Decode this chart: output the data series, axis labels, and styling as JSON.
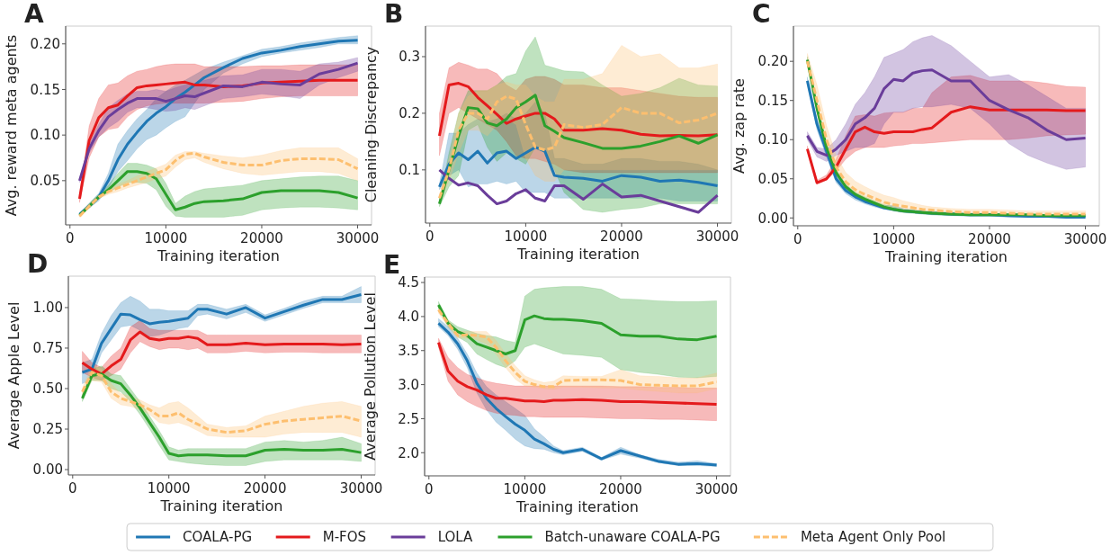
{
  "chart_data": [
    {
      "type": "line",
      "title": "A",
      "xlabel": "Training iteration",
      "ylabel": "Avg. reward meta agents",
      "legend": "bottom",
      "xlim": [
        -450,
        31450
      ],
      "xticks": [
        0,
        10000,
        20000,
        30000
      ],
      "ylim": [
        0.0015,
        0.2195
      ],
      "yticks": [
        0.05,
        {
          "value": 0.1,
          "label": "0.10"
        },
        0.15,
        {
          "value": 0.2,
          "label": "0.20"
        }
      ],
      "x": [
        1000,
        2000,
        3000,
        4000,
        5000,
        6000,
        7000,
        8000,
        9000,
        10000,
        11000,
        12000,
        13000,
        14000,
        16000,
        18000,
        20000,
        22000,
        24000,
        26000,
        28000,
        30000
      ],
      "series": [
        {
          "name": "COALA-PG",
          "color": "#1f77b4",
          "values": [
            0.013,
            0.022,
            0.032,
            0.05,
            0.073,
            0.09,
            0.103,
            0.115,
            0.124,
            0.131,
            0.14,
            0.147,
            0.155,
            0.163,
            0.174,
            0.184,
            0.19,
            0.193,
            0.197,
            0.2,
            0.203,
            0.204
          ],
          "lower": [
            0.012,
            0.02,
            0.028,
            0.042,
            0.06,
            0.072,
            0.085,
            0.095,
            0.1,
            0.108,
            0.115,
            0.12,
            0.135,
            0.15,
            0.168,
            0.178,
            0.186,
            0.19,
            0.193,
            0.196,
            0.2,
            0.2
          ],
          "upper": [
            0.015,
            0.025,
            0.036,
            0.058,
            0.09,
            0.105,
            0.118,
            0.128,
            0.14,
            0.148,
            0.155,
            0.16,
            0.166,
            0.172,
            0.18,
            0.187,
            0.194,
            0.197,
            0.201,
            0.204,
            0.207,
            0.209
          ]
        },
        {
          "name": "M-FOS",
          "color": "#e41a1c",
          "values": [
            0.03,
            0.094,
            0.119,
            0.13,
            0.133,
            0.143,
            0.152,
            0.154,
            0.155,
            0.156,
            0.157,
            0.158,
            0.155,
            0.155,
            0.153,
            0.154,
            0.157,
            0.158,
            0.159,
            0.16,
            0.16,
            0.16
          ],
          "lower": [
            0.026,
            0.075,
            0.098,
            0.106,
            0.108,
            0.12,
            0.128,
            0.132,
            0.134,
            0.135,
            0.135,
            0.135,
            0.135,
            0.135,
            0.136,
            0.137,
            0.14,
            0.142,
            0.143,
            0.143,
            0.143,
            0.143
          ],
          "upper": [
            0.034,
            0.11,
            0.14,
            0.155,
            0.157,
            0.165,
            0.17,
            0.172,
            0.175,
            0.177,
            0.178,
            0.178,
            0.178,
            0.175,
            0.175,
            0.175,
            0.176,
            0.176,
            0.177,
            0.177,
            0.177,
            0.177
          ]
        },
        {
          "name": "LOLA",
          "color": "#6a3d9a",
          "values": [
            0.05,
            0.085,
            0.105,
            0.12,
            0.128,
            0.135,
            0.14,
            0.14,
            0.14,
            0.137,
            0.14,
            0.143,
            0.142,
            0.146,
            0.154,
            0.153,
            0.158,
            0.156,
            0.155,
            0.167,
            0.172,
            0.179
          ],
          "lower": [
            0.048,
            0.08,
            0.098,
            0.108,
            0.115,
            0.125,
            0.13,
            0.13,
            0.128,
            0.126,
            0.127,
            0.13,
            0.128,
            0.132,
            0.14,
            0.142,
            0.145,
            0.143,
            0.14,
            0.155,
            0.163,
            0.17
          ],
          "upper": [
            0.052,
            0.09,
            0.112,
            0.13,
            0.138,
            0.145,
            0.148,
            0.148,
            0.15,
            0.148,
            0.152,
            0.155,
            0.155,
            0.16,
            0.165,
            0.166,
            0.172,
            0.172,
            0.17,
            0.178,
            0.18,
            0.185
          ]
        },
        {
          "name": "Batch-unaware COALA-PG",
          "color": "#2ca02c",
          "values": [
            0.012,
            0.022,
            0.032,
            0.04,
            0.05,
            0.06,
            0.06,
            0.058,
            0.052,
            0.035,
            0.018,
            0.021,
            0.025,
            0.027,
            0.028,
            0.03,
            0.037,
            0.039,
            0.039,
            0.039,
            0.037,
            0.031
          ],
          "lower": [
            0.011,
            0.02,
            0.03,
            0.037,
            0.043,
            0.048,
            0.048,
            0.047,
            0.04,
            0.022,
            0.011,
            0.01,
            0.01,
            0.01,
            0.01,
            0.012,
            0.018,
            0.02,
            0.021,
            0.021,
            0.02,
            0.018
          ],
          "upper": [
            0.013,
            0.025,
            0.035,
            0.045,
            0.058,
            0.069,
            0.069,
            0.067,
            0.063,
            0.047,
            0.025,
            0.033,
            0.038,
            0.041,
            0.043,
            0.045,
            0.05,
            0.052,
            0.054,
            0.055,
            0.055,
            0.05
          ]
        },
        {
          "name": "Meta Agent Only Pool",
          "color": "#fdbf6f",
          "line_style": "dashed",
          "values": [
            0.011,
            0.022,
            0.032,
            0.038,
            0.042,
            0.046,
            0.05,
            0.054,
            0.058,
            0.062,
            0.072,
            0.079,
            0.08,
            0.076,
            0.07,
            0.067,
            0.067,
            0.072,
            0.074,
            0.074,
            0.073,
            0.063
          ],
          "lower": [
            0.01,
            0.02,
            0.03,
            0.035,
            0.038,
            0.042,
            0.045,
            0.048,
            0.052,
            0.055,
            0.065,
            0.073,
            0.075,
            0.07,
            0.063,
            0.058,
            0.056,
            0.058,
            0.06,
            0.06,
            0.058,
            0.05
          ],
          "upper": [
            0.012,
            0.024,
            0.034,
            0.041,
            0.046,
            0.05,
            0.055,
            0.06,
            0.064,
            0.068,
            0.078,
            0.082,
            0.082,
            0.08,
            0.077,
            0.075,
            0.078,
            0.083,
            0.086,
            0.086,
            0.086,
            0.074
          ]
        }
      ]
    },
    {
      "type": "line",
      "title": "B",
      "xlabel": "Training iteration",
      "ylabel": "Cleaning Discrepancy",
      "legend": "bottom",
      "xlim": [
        -450,
        31450
      ],
      "xticks": [
        0,
        10000,
        20000,
        30000
      ],
      "ylim": [
        0.006,
        0.354
      ],
      "yticks": [
        0.1,
        0.2,
        0.3
      ],
      "x": [
        1000,
        2000,
        3000,
        4000,
        5000,
        6000,
        7000,
        8000,
        9000,
        10000,
        11000,
        12000,
        13000,
        14000,
        16000,
        18000,
        20000,
        22000,
        24000,
        26000,
        28000,
        30000
      ],
      "series": [
        {
          "name": "COALA-PG",
          "color": "#1f77b4",
          "values": [
            0.07,
            0.11,
            0.13,
            0.118,
            0.133,
            0.112,
            0.13,
            0.133,
            0.12,
            0.13,
            0.14,
            0.133,
            0.09,
            0.087,
            0.085,
            0.08,
            0.09,
            0.087,
            0.08,
            0.082,
            0.078,
            0.072
          ],
          "lower": [
            0.065,
            0.09,
            0.1,
            0.07,
            0.075,
            0.075,
            0.08,
            0.075,
            0.08,
            0.06,
            0.06,
            0.06,
            0.05,
            0.05,
            0.05,
            0.05,
            0.05,
            0.05,
            0.05,
            0.045,
            0.045,
            0.045
          ],
          "upper": [
            0.075,
            0.165,
            0.165,
            0.18,
            0.19,
            0.185,
            0.19,
            0.2,
            0.19,
            0.2,
            0.22,
            0.2,
            0.12,
            0.12,
            0.11,
            0.11,
            0.12,
            0.12,
            0.115,
            0.115,
            0.11,
            0.1
          ]
        },
        {
          "name": "M-FOS",
          "color": "#e41a1c",
          "values": [
            0.16,
            0.25,
            0.253,
            0.247,
            0.228,
            0.213,
            0.198,
            0.182,
            0.19,
            0.195,
            0.2,
            0.2,
            0.19,
            0.17,
            0.17,
            0.173,
            0.17,
            0.163,
            0.16,
            0.161,
            0.16,
            0.162
          ],
          "lower": [
            0.125,
            0.2,
            0.21,
            0.2,
            0.19,
            0.18,
            0.17,
            0.15,
            0.125,
            0.12,
            0.12,
            0.115,
            0.11,
            0.1,
            0.095,
            0.095,
            0.095,
            0.095,
            0.095,
            0.095,
            0.095,
            0.095
          ],
          "upper": [
            0.2,
            0.28,
            0.29,
            0.285,
            0.278,
            0.278,
            0.27,
            0.25,
            0.24,
            0.26,
            0.265,
            0.265,
            0.26,
            0.25,
            0.25,
            0.245,
            0.245,
            0.24,
            0.235,
            0.23,
            0.228,
            0.228
          ]
        },
        {
          "name": "LOLA",
          "color": "#6a3d9a",
          "values": [
            0.1,
            0.085,
            0.073,
            0.077,
            0.072,
            0.055,
            0.04,
            0.045,
            0.058,
            0.065,
            0.05,
            0.045,
            0.072,
            0.072,
            0.048,
            0.075,
            0.052,
            0.055,
            0.045,
            0.035,
            0.025,
            0.055
          ]
        },
        {
          "name": "Batch-unaware COALA-PG",
          "color": "#2ca02c",
          "values": [
            0.04,
            0.1,
            0.16,
            0.21,
            0.208,
            0.183,
            0.178,
            0.19,
            0.21,
            0.22,
            0.232,
            0.178,
            0.168,
            0.157,
            0.148,
            0.138,
            0.138,
            0.142,
            0.15,
            0.16,
            0.147,
            0.162
          ],
          "lower": [
            0.035,
            0.07,
            0.09,
            0.17,
            0.18,
            0.14,
            0.115,
            0.13,
            0.12,
            0.11,
            0.14,
            0.13,
            0.1,
            0.06,
            0.03,
            0.025,
            0.03,
            0.033,
            0.04,
            0.04,
            0.04,
            0.04
          ],
          "upper": [
            0.045,
            0.13,
            0.2,
            0.24,
            0.24,
            0.24,
            0.25,
            0.265,
            0.27,
            0.31,
            0.335,
            0.285,
            0.28,
            0.275,
            0.273,
            0.25,
            0.23,
            0.235,
            0.245,
            0.262,
            0.25,
            0.248
          ]
        },
        {
          "name": "Meta Agent Only Pool",
          "color": "#fdbf6f",
          "line_style": "dashed",
          "values": [
            0.05,
            0.1,
            0.17,
            0.2,
            0.2,
            0.19,
            0.22,
            0.23,
            0.225,
            0.18,
            0.14,
            0.135,
            0.14,
            0.18,
            0.175,
            0.18,
            0.21,
            0.2,
            0.2,
            0.183,
            0.188,
            0.2
          ],
          "lower": [
            0.045,
            0.08,
            0.13,
            0.17,
            0.17,
            0.16,
            0.18,
            0.19,
            0.18,
            0.12,
            0.09,
            0.08,
            0.08,
            0.1,
            0.1,
            0.1,
            0.1,
            0.1,
            0.1,
            0.1,
            0.1,
            0.1
          ],
          "upper": [
            0.055,
            0.12,
            0.2,
            0.23,
            0.24,
            0.24,
            0.25,
            0.255,
            0.25,
            0.25,
            0.23,
            0.22,
            0.22,
            0.26,
            0.26,
            0.27,
            0.32,
            0.3,
            0.305,
            0.28,
            0.28,
            0.287
          ]
        }
      ]
    },
    {
      "type": "line",
      "title": "C",
      "xlabel": "Training iteration",
      "ylabel": "Avg. zap rate",
      "legend": "bottom",
      "xlim": [
        -450,
        31450
      ],
      "xticks": [
        0,
        10000,
        20000,
        30000
      ],
      "ylim": [
        -0.01,
        0.245
      ],
      "yticks": [
        {
          "value": 0,
          "label": "0.00"
        },
        0.05,
        {
          "value": 0.1,
          "label": "0.10"
        },
        0.15,
        {
          "value": 0.2,
          "label": "0.20"
        }
      ],
      "x": [
        1000,
        2000,
        3000,
        4000,
        5000,
        6000,
        7000,
        8000,
        9000,
        10000,
        11000,
        12000,
        13000,
        14000,
        16000,
        18000,
        20000,
        22000,
        24000,
        26000,
        28000,
        30000
      ],
      "series": [
        {
          "name": "COALA-PG",
          "color": "#1f77b4",
          "values": [
            0.175,
            0.12,
            0.085,
            0.05,
            0.035,
            0.027,
            0.021,
            0.017,
            0.013,
            0.011,
            0.009,
            0.008,
            0.007,
            0.006,
            0.005,
            0.004,
            0.004,
            0.003,
            0.002,
            0.002,
            0.001,
            0.001
          ],
          "lower": [
            0.17,
            0.113,
            0.078,
            0.045,
            0.031,
            0.023,
            0.018,
            0.014,
            0.011,
            0.009,
            0.007,
            0.006,
            0.005,
            0.004,
            0.003,
            0.002,
            0.002,
            0.001,
            0.001,
            0.001,
            0,
            0
          ],
          "upper": [
            0.18,
            0.127,
            0.092,
            0.055,
            0.039,
            0.031,
            0.025,
            0.02,
            0.016,
            0.016,
            0.012,
            0.01,
            0.009,
            0.008,
            0.007,
            0.006,
            0.006,
            0.005,
            0.004,
            0.003,
            0.003,
            0.003
          ]
        },
        {
          "name": "M-FOS",
          "color": "#e41a1c",
          "values": [
            0.088,
            0.045,
            0.05,
            0.065,
            0.088,
            0.11,
            0.116,
            0.11,
            0.108,
            0.11,
            0.11,
            0.11,
            0.113,
            0.115,
            0.135,
            0.142,
            0.138,
            0.138,
            0.138,
            0.138,
            0.137,
            0.137
          ],
          "lower": [
            0.085,
            0.043,
            0.048,
            0.06,
            0.075,
            0.085,
            0.09,
            0.09,
            0.09,
            0.092,
            0.093,
            0.095,
            0.095,
            0.096,
            0.098,
            0.1,
            0.1,
            0.1,
            0.102,
            0.105,
            0.106,
            0.107
          ],
          "upper": [
            0.092,
            0.048,
            0.055,
            0.075,
            0.105,
            0.13,
            0.132,
            0.13,
            0.134,
            0.135,
            0.135,
            0.14,
            0.14,
            0.16,
            0.18,
            0.182,
            0.175,
            0.175,
            0.175,
            0.172,
            0.168,
            0.167
          ]
        },
        {
          "name": "LOLA",
          "color": "#6a3d9a",
          "values": [
            0.105,
            0.085,
            0.08,
            0.088,
            0.1,
            0.12,
            0.128,
            0.14,
            0.165,
            0.177,
            0.175,
            0.185,
            0.188,
            0.189,
            0.175,
            0.175,
            0.15,
            0.138,
            0.128,
            0.112,
            0.1,
            0.102
          ],
          "lower": [
            0.1,
            0.078,
            0.072,
            0.08,
            0.085,
            0.09,
            0.09,
            0.095,
            0.12,
            0.135,
            0.135,
            0.14,
            0.142,
            0.142,
            0.145,
            0.14,
            0.12,
            0.095,
            0.08,
            0.07,
            0.062,
            0.065
          ],
          "upper": [
            0.11,
            0.09,
            0.088,
            0.1,
            0.12,
            0.145,
            0.16,
            0.18,
            0.205,
            0.21,
            0.215,
            0.225,
            0.23,
            0.233,
            0.22,
            0.2,
            0.18,
            0.183,
            0.17,
            0.155,
            0.14,
            0.14
          ]
        },
        {
          "name": "Batch-unaware COALA-PG",
          "color": "#2ca02c",
          "values": [
            0.202,
            0.14,
            0.09,
            0.058,
            0.04,
            0.03,
            0.024,
            0.019,
            0.014,
            0.011,
            0.009,
            0.008,
            0.007,
            0.006,
            0.005,
            0.004,
            0.004,
            0.004,
            0.004,
            0.003,
            0.003,
            0.003
          ],
          "lower": [
            0.198,
            0.135,
            0.085,
            0.054,
            0.037,
            0.027,
            0.021,
            0.016,
            0.012,
            0.009,
            0.007,
            0.006,
            0.005,
            0.004,
            0.003,
            0.003,
            0.003,
            0.003,
            0.003,
            0.002,
            0.002,
            0.002
          ],
          "upper": [
            0.206,
            0.145,
            0.095,
            0.062,
            0.043,
            0.033,
            0.027,
            0.022,
            0.017,
            0.014,
            0.011,
            0.01,
            0.009,
            0.008,
            0.007,
            0.006,
            0.006,
            0.005,
            0.005,
            0.004,
            0.004,
            0.004
          ]
        },
        {
          "name": "Meta Agent Only Pool",
          "color": "#fdbf6f",
          "line_style": "dashed",
          "values": [
            0.2,
            0.15,
            0.1,
            0.065,
            0.046,
            0.036,
            0.03,
            0.025,
            0.02,
            0.017,
            0.015,
            0.013,
            0.011,
            0.01,
            0.008,
            0.007,
            0.007,
            0.006,
            0.005,
            0.005,
            0.005,
            0.005
          ],
          "lower": [
            0.195,
            0.14,
            0.092,
            0.058,
            0.04,
            0.03,
            0.025,
            0.02,
            0.016,
            0.013,
            0.011,
            0.01,
            0.009,
            0.008,
            0.006,
            0.005,
            0.005,
            0.004,
            0.004,
            0.004,
            0.004,
            0.003
          ],
          "upper": [
            0.21,
            0.17,
            0.118,
            0.08,
            0.058,
            0.047,
            0.04,
            0.034,
            0.029,
            0.026,
            0.022,
            0.019,
            0.016,
            0.014,
            0.012,
            0.011,
            0.011,
            0.01,
            0.009,
            0.009,
            0.009,
            0.009
          ]
        }
      ]
    },
    {
      "type": "line",
      "title": "D",
      "xlabel": "Training iteration",
      "ylabel": "Average Apple Level",
      "legend": "bottom",
      "xlim": [
        -450,
        31450
      ],
      "xticks": [
        0,
        10000,
        20000,
        30000
      ],
      "ylim": [
        -0.033,
        1.194
      ],
      "yticks": [
        {
          "value": 0,
          "label": "0.00"
        },
        0.25,
        {
          "value": 0.5,
          "label": "0.50"
        },
        0.75,
        {
          "value": 1,
          "label": "1.00"
        }
      ],
      "x": [
        1000,
        2000,
        3000,
        4000,
        5000,
        6000,
        7000,
        8000,
        9000,
        10000,
        11000,
        12000,
        13000,
        14000,
        16000,
        18000,
        20000,
        22000,
        24000,
        26000,
        28000,
        30000
      ],
      "series": [
        {
          "name": "COALA-PG",
          "color": "#1f77b4",
          "values": [
            0.6,
            0.62,
            0.78,
            0.87,
            0.96,
            0.955,
            0.925,
            0.9,
            0.91,
            0.915,
            0.925,
            0.935,
            0.99,
            0.99,
            0.96,
            1.0,
            0.935,
            0.975,
            1.015,
            1.05,
            1.05,
            1.08
          ],
          "lower": [
            0.53,
            0.56,
            0.72,
            0.8,
            0.88,
            0.89,
            0.86,
            0.82,
            0.83,
            0.85,
            0.87,
            0.88,
            0.95,
            0.96,
            0.93,
            0.97,
            0.915,
            0.955,
            0.995,
            1.03,
            1.03,
            1.03
          ],
          "upper": [
            0.66,
            0.68,
            0.84,
            0.95,
            1.03,
            1.07,
            1.04,
            0.99,
            0.99,
            0.98,
            0.98,
            0.98,
            1.02,
            1.02,
            0.99,
            1.02,
            0.955,
            0.995,
            1.04,
            1.07,
            1.07,
            1.13
          ]
        },
        {
          "name": "M-FOS",
          "color": "#e41a1c",
          "values": [
            0.66,
            0.62,
            0.59,
            0.64,
            0.68,
            0.8,
            0.85,
            0.81,
            0.8,
            0.81,
            0.81,
            0.82,
            0.81,
            0.77,
            0.77,
            0.78,
            0.77,
            0.775,
            0.775,
            0.775,
            0.77,
            0.775
          ],
          "lower": [
            0.6,
            0.57,
            0.55,
            0.58,
            0.62,
            0.72,
            0.79,
            0.76,
            0.74,
            0.75,
            0.75,
            0.74,
            0.75,
            0.72,
            0.72,
            0.73,
            0.72,
            0.725,
            0.725,
            0.72,
            0.72,
            0.72
          ],
          "upper": [
            0.73,
            0.66,
            0.63,
            0.7,
            0.75,
            0.88,
            0.92,
            0.87,
            0.86,
            0.86,
            0.86,
            0.86,
            0.86,
            0.83,
            0.83,
            0.83,
            0.83,
            0.83,
            0.83,
            0.83,
            0.83,
            0.83
          ]
        },
        {
          "name": "Batch-unaware COALA-PG",
          "color": "#2ca02c",
          "values": [
            0.44,
            0.58,
            0.59,
            0.55,
            0.53,
            0.46,
            0.38,
            0.29,
            0.2,
            0.1,
            0.085,
            0.09,
            0.09,
            0.09,
            0.085,
            0.085,
            0.12,
            0.125,
            0.12,
            0.12,
            0.125,
            0.105
          ],
          "lower": [
            0.42,
            0.55,
            0.55,
            0.5,
            0.48,
            0.42,
            0.34,
            0.25,
            0.15,
            0.06,
            0.05,
            0.04,
            0.035,
            0.03,
            0.025,
            0.025,
            0.05,
            0.06,
            0.06,
            0.06,
            0.06,
            0.05
          ],
          "upper": [
            0.46,
            0.62,
            0.64,
            0.59,
            0.58,
            0.5,
            0.42,
            0.33,
            0.24,
            0.14,
            0.12,
            0.13,
            0.13,
            0.13,
            0.13,
            0.13,
            0.17,
            0.18,
            0.17,
            0.18,
            0.2,
            0.16
          ]
        },
        {
          "name": "Meta Agent Only Pool",
          "color": "#fdbf6f",
          "line_style": "dashed",
          "values": [
            0.48,
            0.6,
            0.58,
            0.48,
            0.44,
            0.42,
            0.4,
            0.37,
            0.33,
            0.33,
            0.35,
            0.31,
            0.28,
            0.25,
            0.23,
            0.24,
            0.28,
            0.3,
            0.31,
            0.32,
            0.33,
            0.3
          ],
          "lower": [
            0.46,
            0.55,
            0.54,
            0.44,
            0.4,
            0.39,
            0.37,
            0.34,
            0.29,
            0.28,
            0.29,
            0.27,
            0.24,
            0.21,
            0.2,
            0.2,
            0.2,
            0.22,
            0.23,
            0.23,
            0.23,
            0.2
          ],
          "upper": [
            0.5,
            0.65,
            0.62,
            0.53,
            0.47,
            0.45,
            0.43,
            0.4,
            0.38,
            0.41,
            0.42,
            0.38,
            0.33,
            0.28,
            0.26,
            0.27,
            0.33,
            0.36,
            0.39,
            0.41,
            0.42,
            0.39
          ]
        }
      ]
    },
    {
      "type": "line",
      "title": "E",
      "xlabel": "Training iteration",
      "ylabel": "Average Pollution Level",
      "legend": "bottom",
      "xlim": [
        -450,
        31450
      ],
      "xticks": [
        0,
        10000,
        20000,
        30000
      ],
      "ylim": [
        1.66,
        4.58
      ],
      "yticks": [
        {
          "value": 2,
          "label": "2.0"
        },
        2.5,
        {
          "value": 3,
          "label": "3.0"
        },
        3.5,
        {
          "value": 4,
          "label": "4.0"
        },
        4.5
      ],
      "x": [
        1000,
        2000,
        3000,
        4000,
        5000,
        6000,
        7000,
        8000,
        9000,
        10000,
        11000,
        12000,
        13000,
        14000,
        16000,
        18000,
        20000,
        22000,
        24000,
        26000,
        28000,
        30000
      ],
      "series": [
        {
          "name": "COALA-PG",
          "color": "#1f77b4",
          "values": [
            3.9,
            3.77,
            3.6,
            3.35,
            3.02,
            2.8,
            2.65,
            2.53,
            2.42,
            2.33,
            2.2,
            2.13,
            2.05,
            2.0,
            2.05,
            1.91,
            2.03,
            1.95,
            1.87,
            1.83,
            1.84,
            1.82
          ],
          "lower": [
            3.85,
            3.72,
            3.52,
            3.25,
            2.88,
            2.63,
            2.45,
            2.33,
            2.2,
            2.1,
            2.06,
            2.05,
            2.0,
            1.97,
            2.02,
            1.89,
            1.98,
            1.92,
            1.85,
            1.81,
            1.81,
            1.8
          ],
          "upper": [
            3.97,
            3.85,
            3.68,
            3.45,
            3.17,
            2.97,
            2.85,
            2.75,
            2.65,
            2.55,
            2.35,
            2.23,
            2.1,
            2.03,
            2.08,
            1.93,
            2.08,
            1.97,
            1.9,
            1.86,
            1.88,
            1.84
          ]
        },
        {
          "name": "M-FOS",
          "color": "#e41a1c",
          "values": [
            3.62,
            3.2,
            3.05,
            2.97,
            2.92,
            2.85,
            2.8,
            2.8,
            2.78,
            2.76,
            2.76,
            2.75,
            2.77,
            2.77,
            2.78,
            2.77,
            2.75,
            2.75,
            2.74,
            2.73,
            2.72,
            2.71
          ],
          "lower": [
            3.55,
            3.05,
            2.85,
            2.75,
            2.68,
            2.62,
            2.58,
            2.56,
            2.55,
            2.53,
            2.53,
            2.52,
            2.52,
            2.52,
            2.52,
            2.51,
            2.5,
            2.5,
            2.49,
            2.49,
            2.48,
            2.47
          ],
          "upper": [
            3.68,
            3.4,
            3.25,
            3.15,
            3.1,
            3.05,
            3.02,
            3.0,
            2.98,
            2.98,
            2.98,
            2.98,
            2.98,
            2.98,
            2.98,
            2.98,
            2.97,
            2.97,
            2.96,
            2.96,
            2.95,
            2.95
          ]
        },
        {
          "name": "Batch-unaware COALA-PG",
          "color": "#2ca02c",
          "values": [
            4.17,
            3.9,
            3.78,
            3.72,
            3.6,
            3.55,
            3.5,
            3.45,
            3.5,
            3.95,
            4.01,
            3.97,
            3.96,
            3.96,
            3.94,
            3.9,
            3.73,
            3.71,
            3.71,
            3.67,
            3.66,
            3.71
          ],
          "lower": [
            4.12,
            3.85,
            3.7,
            3.62,
            3.45,
            3.37,
            3.3,
            3.25,
            3.35,
            3.55,
            3.6,
            3.55,
            3.5,
            3.45,
            3.43,
            3.4,
            3.22,
            3.18,
            3.15,
            3.11,
            3.1,
            3.12
          ],
          "upper": [
            4.22,
            3.95,
            3.85,
            3.8,
            3.75,
            3.72,
            3.7,
            3.65,
            3.62,
            4.3,
            4.4,
            4.42,
            4.43,
            4.44,
            4.44,
            4.4,
            4.26,
            4.25,
            4.23,
            4.22,
            4.22,
            4.23
          ]
        },
        {
          "name": "Meta Agent Only Pool",
          "color": "#fdbf6f",
          "line_style": "dashed",
          "values": [
            4.1,
            3.9,
            3.72,
            3.73,
            3.72,
            3.7,
            3.55,
            3.35,
            3.18,
            3.05,
            3.0,
            2.97,
            2.97,
            3.06,
            3.07,
            3.07,
            3.06,
            3.0,
            2.99,
            2.98,
            2.98,
            3.04
          ],
          "lower": [
            4.05,
            3.85,
            3.68,
            3.68,
            3.66,
            3.6,
            3.45,
            3.25,
            3.08,
            2.98,
            2.96,
            2.94,
            2.93,
            2.96,
            2.96,
            2.95,
            2.95,
            2.92,
            2.9,
            2.88,
            2.88,
            2.94
          ],
          "upper": [
            4.15,
            3.95,
            3.78,
            3.78,
            3.78,
            3.78,
            3.65,
            3.45,
            3.28,
            3.13,
            3.07,
            3.03,
            3.05,
            3.13,
            3.12,
            3.12,
            3.22,
            3.13,
            3.12,
            3.1,
            3.1,
            3.17
          ]
        }
      ]
    }
  ]
}
